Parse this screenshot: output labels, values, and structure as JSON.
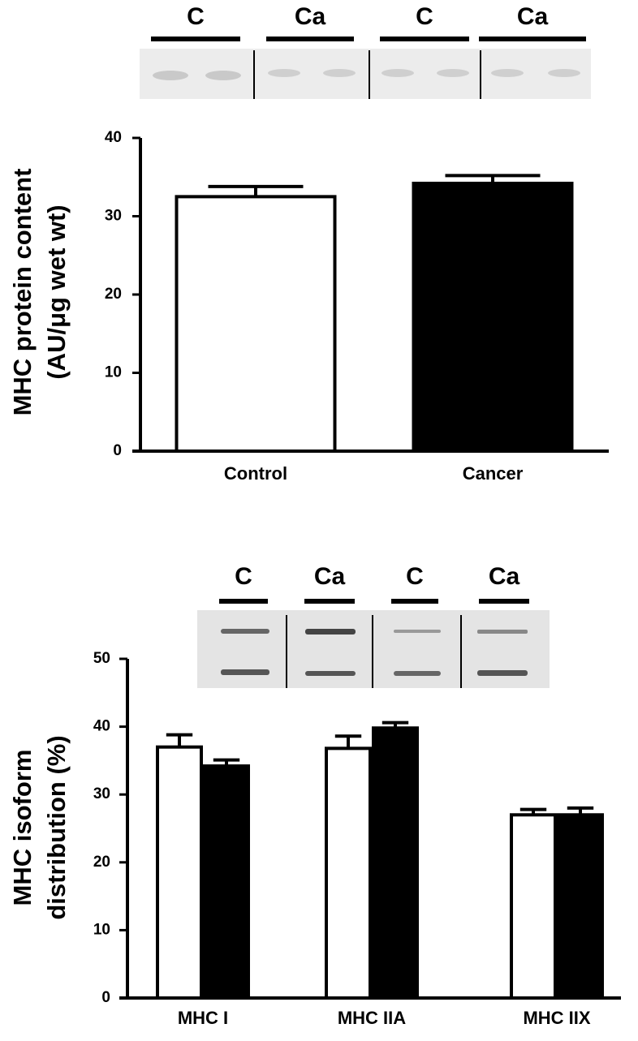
{
  "chart_data": [
    {
      "type": "bar",
      "lane_labels": [
        "C",
        "Ca",
        "C",
        "Ca"
      ],
      "ylabel": [
        "MHC protein content",
        "(AU/μg wet wt)"
      ],
      "categories": [
        "Control",
        "Cancer"
      ],
      "values": [
        32.5,
        34.2
      ],
      "errors": [
        1.3,
        1.0
      ],
      "colors": [
        "#ffffff",
        "#000000"
      ],
      "ylim": [
        0,
        40
      ],
      "yticks": [
        0,
        10,
        20,
        30,
        40
      ]
    },
    {
      "type": "bar",
      "lane_labels": [
        "C",
        "Ca",
        "C",
        "Ca"
      ],
      "ylabel": [
        "MHC isoform",
        "distribution (%)"
      ],
      "categories": [
        "MHC I",
        "MHC IIA",
        "MHC IIX"
      ],
      "series": [
        {
          "color": "#ffffff",
          "values": [
            37.0,
            36.8,
            27.0
          ],
          "errors": [
            1.8,
            1.8,
            0.8
          ]
        },
        {
          "color": "#000000",
          "values": [
            34.2,
            39.8,
            27.0
          ],
          "errors": [
            0.9,
            0.8,
            1.0
          ]
        }
      ],
      "ylim": [
        0,
        50
      ],
      "yticks": [
        0,
        10,
        20,
        30,
        40,
        50
      ]
    }
  ]
}
